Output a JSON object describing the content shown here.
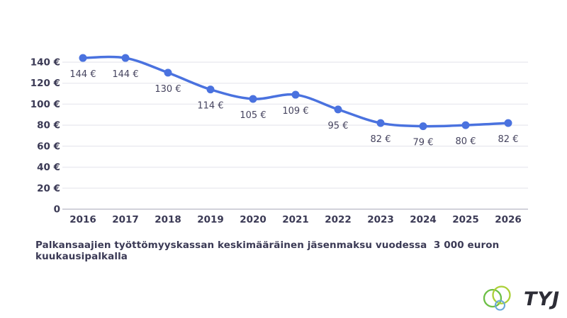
{
  "chart_data": {
    "type": "line",
    "x": [
      "2016",
      "2017",
      "2018",
      "2019",
      "2020",
      "2021",
      "2022",
      "2023",
      "2024",
      "2025",
      "2026"
    ],
    "values": [
      144,
      144,
      130,
      114,
      105,
      109,
      95,
      82,
      79,
      80,
      82
    ],
    "point_labels": [
      "144 €",
      "144 €",
      "130 €",
      "114 €",
      "105 €",
      "109 €",
      "95 €",
      "82 €",
      "79 €",
      "80 €",
      "82 €"
    ],
    "y_ticks": [
      0,
      20,
      40,
      60,
      80,
      100,
      120,
      140
    ],
    "y_tick_labels": [
      "0",
      "20 €",
      "40 €",
      "60 €",
      "80 €",
      "100 €",
      "120 €",
      "140 €"
    ],
    "ylim": [
      0,
      148
    ],
    "xlabel": "",
    "ylabel": "",
    "grid": "horizontal",
    "legend": "none",
    "line_style": "smooth",
    "markers": "circle",
    "title": "Palkansaajien työttömyyskassan keskimääräinen jäsenmaksu vuodessa  3 000 euron kuukausipalkalla"
  },
  "logo": {
    "text": "TYJ"
  },
  "colors": {
    "background": "#ffffff",
    "line": "#4a72df",
    "marker": "#4a72df",
    "axis_text": "#3b3a55",
    "point_label_text": "#46445f",
    "gridline": "#ececf1",
    "zero_line": "#d2d2da",
    "caption_text": "#3b3a55",
    "logo_green": "#6cbf45",
    "logo_lime": "#abd037",
    "logo_blue": "#68a8d8",
    "logo_text": "#2d2d36"
  }
}
